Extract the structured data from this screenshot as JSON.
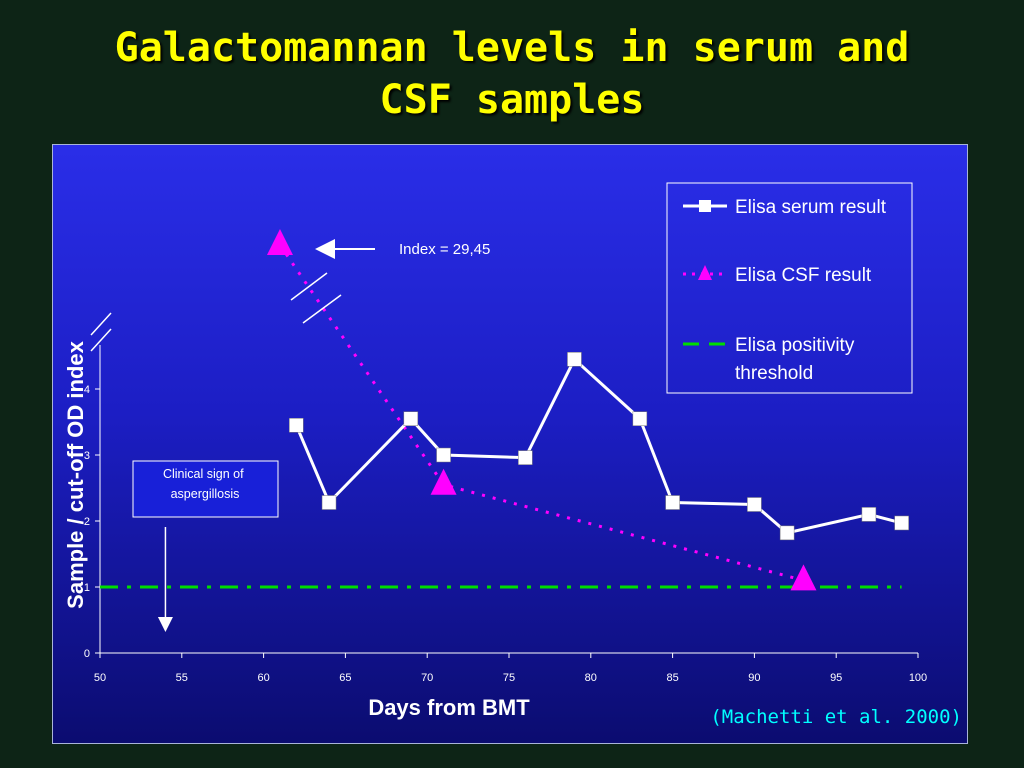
{
  "slide": {
    "title_line1": "Galactomannan levels in serum and",
    "title_line2": "CSF samples",
    "citation": "(Machetti et al. 2000)"
  },
  "colors": {
    "title": "#ffff00",
    "serum": "#ffffff",
    "csf": "#ff00ff",
    "threshold": "#00dd00",
    "citation": "#00ffff"
  },
  "chart_data": {
    "type": "line",
    "title": "",
    "xlabel": "Days from BMT",
    "ylabel": "Sample / cut-off OD index",
    "xlim": [
      50,
      100
    ],
    "ylim": [
      0,
      4
    ],
    "x_ticks": [
      50,
      55,
      60,
      65,
      70,
      75,
      80,
      85,
      90,
      95,
      100
    ],
    "y_ticks": [
      0,
      1,
      2,
      3,
      4
    ],
    "y_axis_break": true,
    "grid": false,
    "legend_position": "top-right",
    "series": [
      {
        "name": "Elisa serum result",
        "style": "line-square",
        "color": "#ffffff",
        "points": [
          [
            62,
            3.45
          ],
          [
            64,
            2.28
          ],
          [
            69,
            3.55
          ],
          [
            71,
            3.0
          ],
          [
            76,
            2.96
          ],
          [
            79,
            4.45
          ],
          [
            83,
            3.55
          ],
          [
            85,
            2.28
          ],
          [
            90,
            2.25
          ],
          [
            92,
            1.82
          ],
          [
            97,
            2.1
          ],
          [
            99,
            1.97
          ]
        ]
      },
      {
        "name": "Elisa CSF result",
        "style": "dotted-triangle",
        "color": "#ff00ff",
        "points": [
          [
            61,
            29.45
          ],
          [
            71,
            2.55
          ],
          [
            93,
            1.1
          ]
        ]
      },
      {
        "name": "Elisa positivity threshold",
        "style": "dash-dot",
        "color": "#00dd00",
        "points": [
          [
            50,
            1
          ],
          [
            99,
            1
          ]
        ]
      }
    ],
    "annotations": {
      "index_label": "Index = 29,45",
      "clinical_sign": "Clinical sign of aspergillosis",
      "clinical_sign_day": 54
    }
  }
}
